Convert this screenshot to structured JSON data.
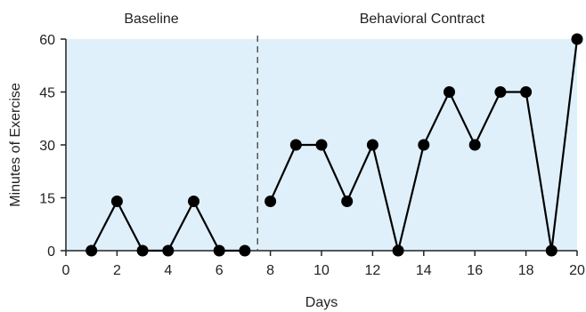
{
  "chart_data": {
    "type": "line",
    "phases": [
      {
        "label": "Baseline",
        "x_start": 0,
        "x_end": 7.5
      },
      {
        "label": "Behavioral Contract",
        "x_start": 7.5,
        "x_end": 20
      }
    ],
    "phase_change_x": 7.5,
    "xlabel": "Days",
    "ylabel": "Minutes of Exercise",
    "xlim": [
      0,
      20
    ],
    "ylim": [
      0,
      60
    ],
    "x_ticks": [
      0,
      2,
      4,
      6,
      8,
      10,
      12,
      14,
      16,
      18,
      20
    ],
    "y_ticks": [
      0,
      15,
      30,
      45,
      60
    ],
    "grid": false,
    "series": [
      {
        "phase": "Baseline",
        "points": [
          {
            "x": 1,
            "y": 0
          },
          {
            "x": 2,
            "y": 14
          },
          {
            "x": 3,
            "y": 0
          },
          {
            "x": 4,
            "y": 0
          },
          {
            "x": 5,
            "y": 14
          },
          {
            "x": 6,
            "y": 0
          },
          {
            "x": 7,
            "y": 0
          }
        ]
      },
      {
        "phase": "Behavioral Contract",
        "points": [
          {
            "x": 8,
            "y": 14
          },
          {
            "x": 9,
            "y": 30
          },
          {
            "x": 10,
            "y": 30
          },
          {
            "x": 11,
            "y": 14
          },
          {
            "x": 12,
            "y": 30
          },
          {
            "x": 13,
            "y": 0
          },
          {
            "x": 14,
            "y": 30
          },
          {
            "x": 15,
            "y": 45
          },
          {
            "x": 16,
            "y": 30
          },
          {
            "x": 17,
            "y": 45
          },
          {
            "x": 18,
            "y": 45
          },
          {
            "x": 19,
            "y": 0
          },
          {
            "x": 20,
            "y": 60
          }
        ]
      }
    ],
    "colors": {
      "plot_background": "#dff0fa",
      "line": "#000000",
      "marker": "#000000",
      "phase_divider": "#555555"
    }
  }
}
